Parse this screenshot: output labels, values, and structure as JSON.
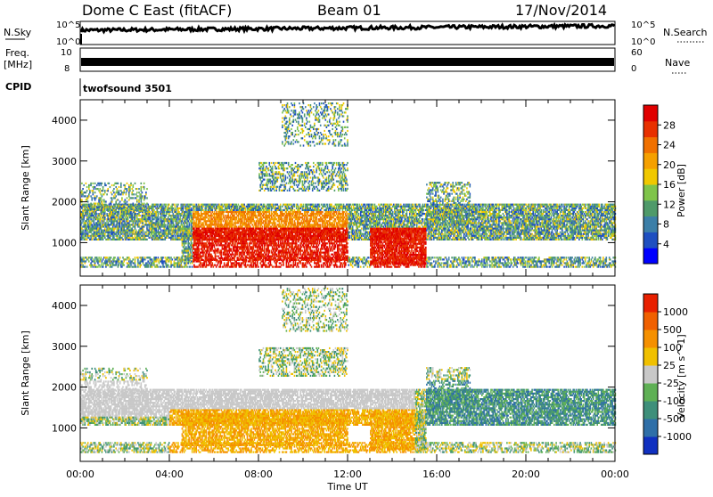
{
  "header": {
    "title": "Dome C East (fitACF)",
    "beam": "Beam 01",
    "date": "17/Nov/2014"
  },
  "panel_labels": {
    "nsky": "N.Sky",
    "nsky_top": "10^5",
    "nsky_bottom": "10^0",
    "nsearch": "N.Search",
    "nsearch_top": "10^5",
    "nsearch_bottom": "10^0",
    "freq": "Freq.",
    "freq_unit": "[MHz]",
    "freq_top": "10",
    "freq_bottom": "8",
    "nave": "Nave",
    "nave_top": "60",
    "nave_bottom": "0",
    "cpid": "CPID",
    "cpid_value": "twofsound 3501"
  },
  "chart_data": [
    {
      "type": "heatmap",
      "name": "power",
      "ylabel": "Slant Range [km]",
      "xlabel": "Time UT",
      "x_ticks": [
        "00:00",
        "04:00",
        "08:00",
        "12:00",
        "16:00",
        "20:00",
        "00:00"
      ],
      "y_ticks": [
        "1000",
        "2000",
        "3000",
        "4000"
      ],
      "xlim_hours": [
        0,
        24
      ],
      "ylim_km": [
        180,
        4500
      ],
      "colorbar": {
        "label": "Power [dB]",
        "ticks": [
          "4",
          "8",
          "12",
          "16",
          "20",
          "24",
          "28"
        ],
        "colors": [
          "#0000ff",
          "#1f4fc0",
          "#3c7fa8",
          "#4f9a6a",
          "#7fc44a",
          "#f0c800",
          "#f5a000",
          "#f07000",
          "#e83000",
          "#e00000"
        ]
      }
    },
    {
      "type": "heatmap",
      "name": "velocity",
      "ylabel": "Slant Range [km]",
      "xlabel": "Time UT",
      "x_ticks": [
        "00:00",
        "04:00",
        "08:00",
        "12:00",
        "16:00",
        "20:00",
        "00:00"
      ],
      "y_ticks": [
        "1000",
        "2000",
        "3000",
        "4000"
      ],
      "xlim_hours": [
        0,
        24
      ],
      "ylim_km": [
        180,
        4500
      ],
      "colorbar": {
        "label": "Velocity [m s^-1]",
        "ticks": [
          "1000",
          "500",
          "100",
          "25",
          "-25",
          "-100",
          "-500",
          "-1000"
        ],
        "colors": [
          "#1030c0",
          "#2f6fa8",
          "#3e8f7a",
          "#5fb055",
          "#c8c8c8",
          "#f0c000",
          "#f59000",
          "#f06000",
          "#e82000"
        ]
      }
    }
  ],
  "x_axis_title": "Time UT"
}
